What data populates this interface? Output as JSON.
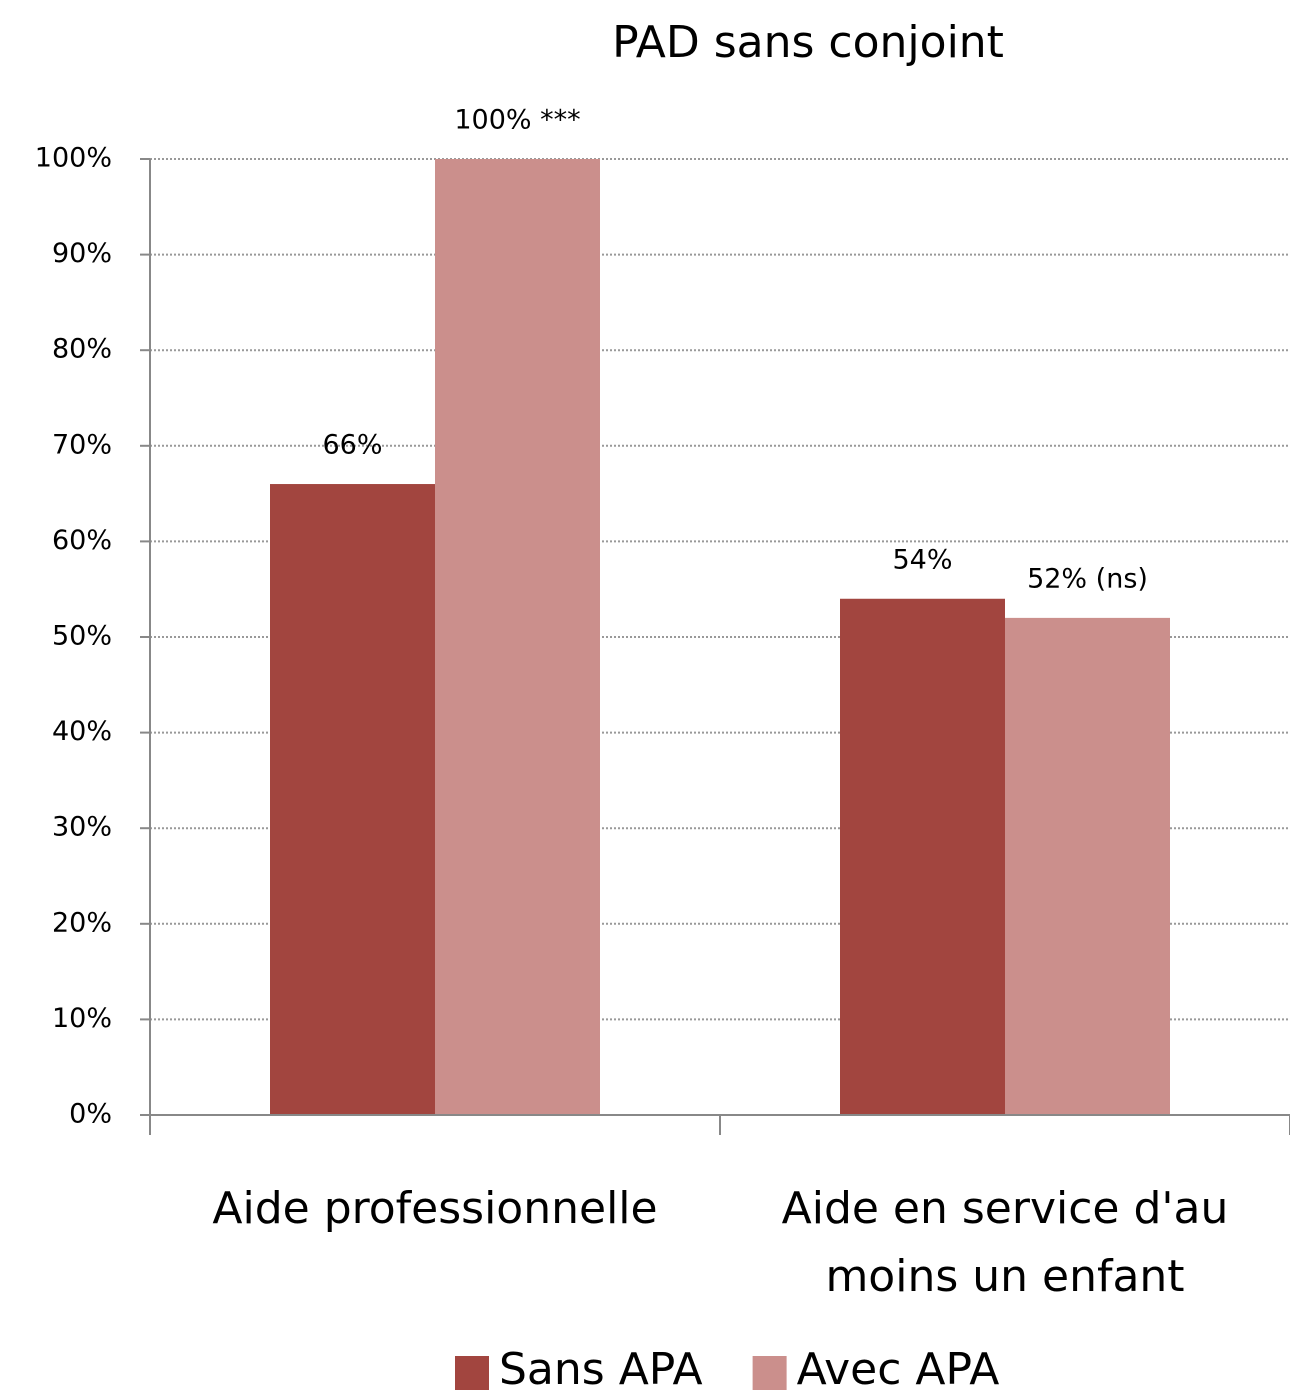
{
  "chart_data": {
    "type": "bar",
    "title": "PAD sans conjoint",
    "categories": [
      "Aide professionnelle",
      "Aide en service d'au moins un enfant"
    ],
    "series": [
      {
        "name": "Sans APA",
        "color": "#a2453f",
        "values": [
          66,
          54
        ],
        "value_labels": [
          "66%",
          "54%"
        ]
      },
      {
        "name": "Avec APA",
        "color": "#cb8f8c",
        "values": [
          100,
          52
        ],
        "value_labels": [
          "100% ***",
          "52% (ns)"
        ]
      }
    ],
    "ylim": [
      0,
      100
    ],
    "yticks": [
      {
        "value": 0,
        "label": "0%"
      },
      {
        "value": 10,
        "label": "10%"
      },
      {
        "value": 20,
        "label": "20%"
      },
      {
        "value": 30,
        "label": "30%"
      },
      {
        "value": 40,
        "label": "40%"
      },
      {
        "value": 50,
        "label": "50%"
      },
      {
        "value": 60,
        "label": "60%"
      },
      {
        "value": 70,
        "label": "70%"
      },
      {
        "value": 80,
        "label": "80%"
      },
      {
        "value": 90,
        "label": "90%"
      },
      {
        "value": 100,
        "label": "100%"
      }
    ],
    "grid": true,
    "legend": "bottom"
  }
}
